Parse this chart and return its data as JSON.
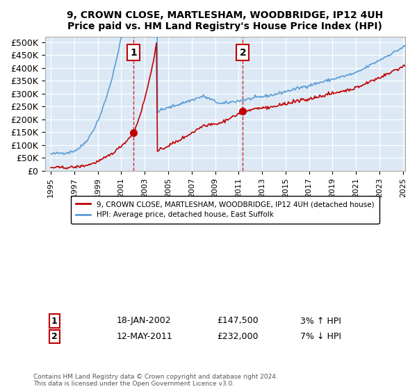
{
  "title": "9, CROWN CLOSE, MARTLESHAM, WOODBRIDGE, IP12 4UH",
  "subtitle": "Price paid vs. HM Land Registry's House Price Index (HPI)",
  "xlabel": "",
  "ylabel": "",
  "ylim": [
    0,
    520000
  ],
  "yticks": [
    0,
    50000,
    100000,
    150000,
    200000,
    250000,
    300000,
    350000,
    400000,
    450000,
    500000
  ],
  "ytick_labels": [
    "£0",
    "£50K",
    "£100K",
    "£150K",
    "£200K",
    "£250K",
    "£300K",
    "£350K",
    "£400K",
    "£450K",
    "£500K"
  ],
  "background_color": "#dce9f5",
  "plot_bg_color": "#dce9f5",
  "hpi_color": "#5b9bd5",
  "price_color": "#c00000",
  "marker_color": "#c00000",
  "sale1_x": 2002.05,
  "sale1_y": 147500,
  "sale1_label": "1",
  "sale1_date": "18-JAN-2002",
  "sale1_price": "£147,500",
  "sale1_hpi": "3% ↑ HPI",
  "sale2_x": 2011.36,
  "sale2_y": 232000,
  "sale2_label": "2",
  "sale2_date": "12-MAY-2011",
  "sale2_price": "£232,000",
  "sale2_hpi": "7% ↓ HPI",
  "legend_line1": "9, CROWN CLOSE, MARTLESHAM, WOODBRIDGE, IP12 4UH (detached house)",
  "legend_line2": "HPI: Average price, detached house, East Suffolk",
  "footer": "Contains HM Land Registry data © Crown copyright and database right 2024.\nThis data is licensed under the Open Government Licence v3.0.",
  "xlim_start": 1994.5,
  "xlim_end": 2025.2
}
